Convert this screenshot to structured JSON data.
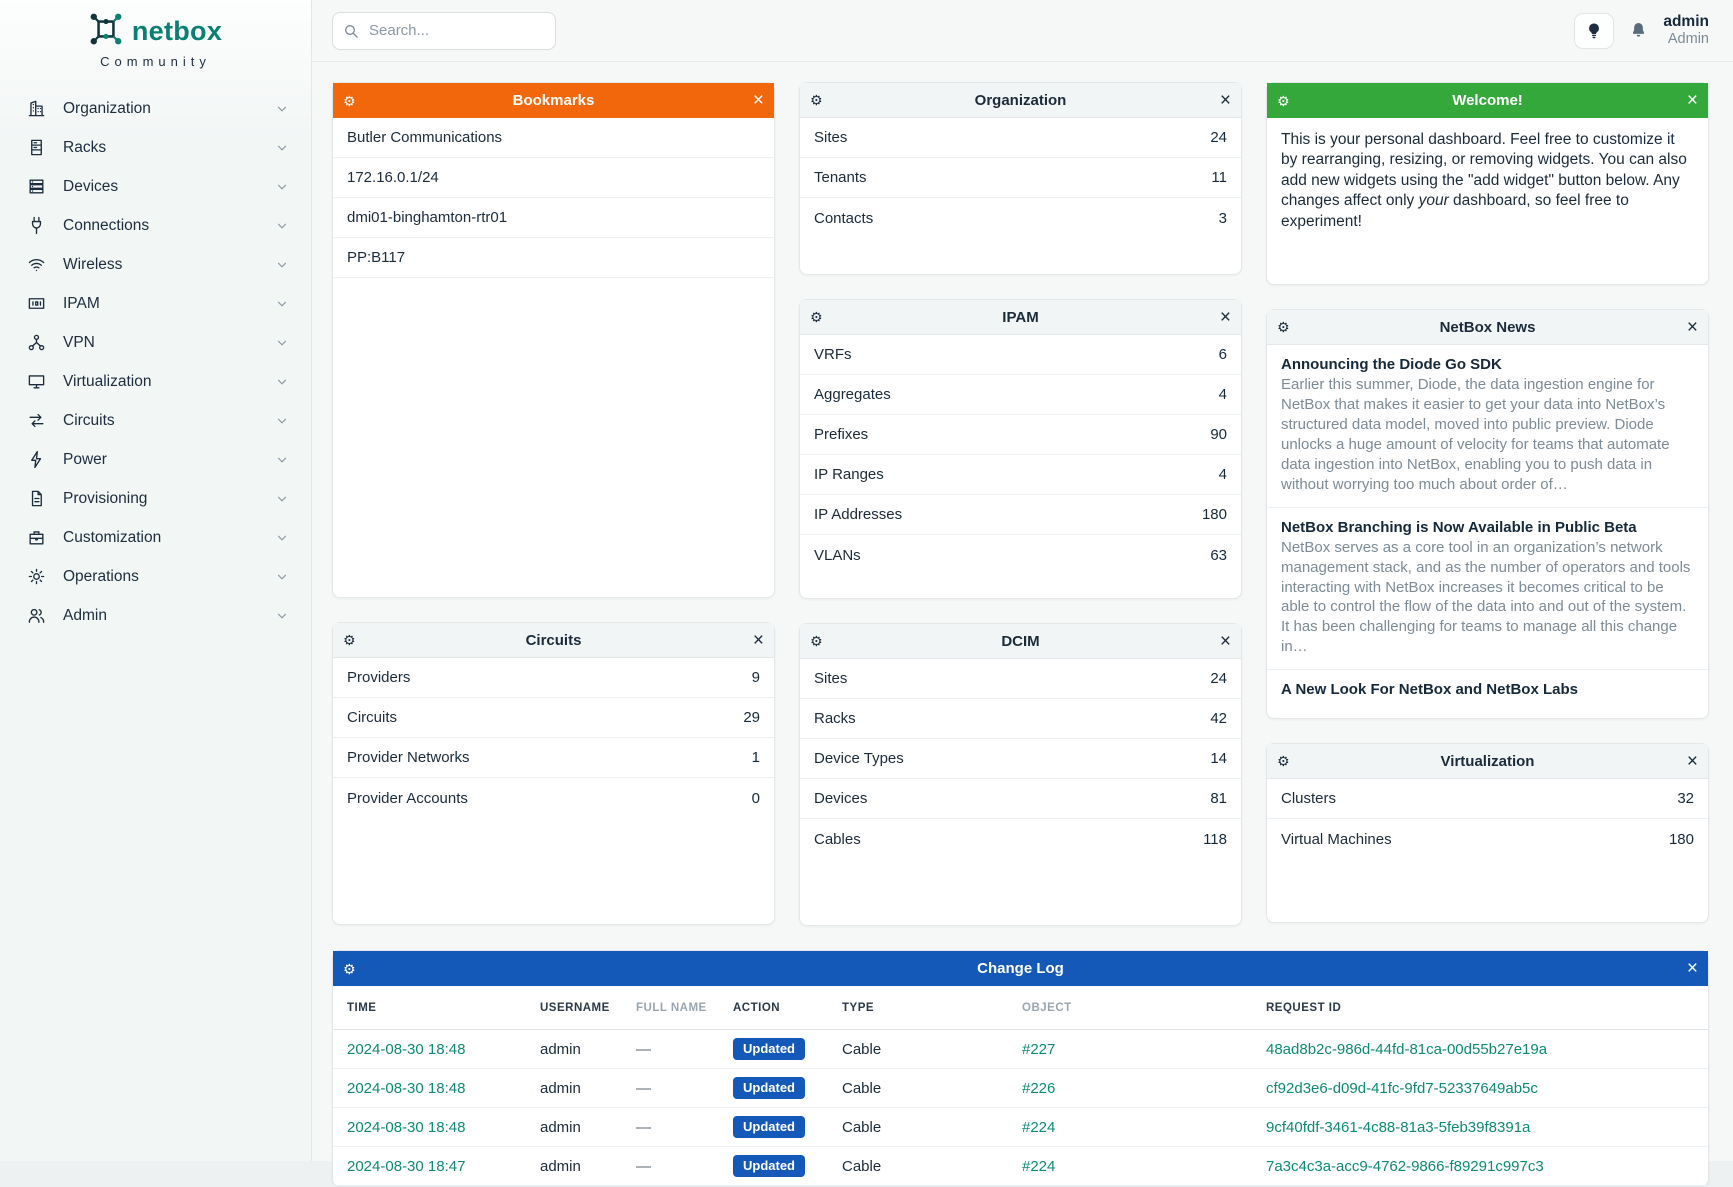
{
  "brand": {
    "name": "netbox",
    "subtitle": "Community"
  },
  "topbar": {
    "search_placeholder": "Search...",
    "user_name": "admin",
    "user_role": "Admin"
  },
  "sidebar": {
    "items": [
      {
        "label": "Organization",
        "icon": "organization-icon"
      },
      {
        "label": "Racks",
        "icon": "racks-icon"
      },
      {
        "label": "Devices",
        "icon": "devices-icon"
      },
      {
        "label": "Connections",
        "icon": "connections-icon"
      },
      {
        "label": "Wireless",
        "icon": "wireless-icon"
      },
      {
        "label": "IPAM",
        "icon": "ipam-icon"
      },
      {
        "label": "VPN",
        "icon": "vpn-icon"
      },
      {
        "label": "Virtualization",
        "icon": "virtualization-icon"
      },
      {
        "label": "Circuits",
        "icon": "circuits-icon"
      },
      {
        "label": "Power",
        "icon": "power-icon"
      },
      {
        "label": "Provisioning",
        "icon": "provisioning-icon"
      },
      {
        "label": "Customization",
        "icon": "customization-icon"
      },
      {
        "label": "Operations",
        "icon": "operations-icon"
      },
      {
        "label": "Admin",
        "icon": "admin-icon"
      }
    ]
  },
  "widgets": {
    "bookmarks": {
      "title": "Bookmarks",
      "accent": "#f2670c",
      "items": [
        "Butler Communications",
        "172.16.0.1/24",
        "dmi01-binghamton-rtr01",
        "PP:B117"
      ]
    },
    "organization": {
      "title": "Organization",
      "rows": [
        {
          "label": "Sites",
          "value": "24"
        },
        {
          "label": "Tenants",
          "value": "11"
        },
        {
          "label": "Contacts",
          "value": "3"
        }
      ]
    },
    "welcome": {
      "title": "Welcome!",
      "accent": "#35a83c",
      "text_pre": "This is your personal dashboard. Feel free to customize it by rearranging, resizing, or removing widgets. You can also add new widgets using the \"add widget\" button below. Any changes affect only ",
      "text_italic": "your",
      "text_post": " dashboard, so feel free to experiment!"
    },
    "ipam": {
      "title": "IPAM",
      "rows": [
        {
          "label": "VRFs",
          "value": "6"
        },
        {
          "label": "Aggregates",
          "value": "4"
        },
        {
          "label": "Prefixes",
          "value": "90"
        },
        {
          "label": "IP Ranges",
          "value": "4"
        },
        {
          "label": "IP Addresses",
          "value": "180"
        },
        {
          "label": "VLANs",
          "value": "63"
        }
      ]
    },
    "news": {
      "title": "NetBox News",
      "articles": [
        {
          "title": "Announcing the Diode Go SDK",
          "excerpt": "Earlier this summer, Diode, the data ingestion engine for NetBox that makes it easier to get your data into NetBox’s structured data model, moved into public preview. Diode unlocks a huge amount of velocity for teams that automate data ingestion into NetBox, enabling you to push data in without worrying too much about order of…"
        },
        {
          "title": "NetBox Branching is Now Available in Public Beta",
          "excerpt": "NetBox serves as a core tool in an organization’s network management stack, and as the number of operators and tools interacting with NetBox increases it becomes critical to be able to control the flow of the data into and out of the system. It has been challenging for teams to manage all this change in…"
        },
        {
          "title": "A New Look For NetBox and NetBox Labs",
          "excerpt": ""
        }
      ]
    },
    "circuits": {
      "title": "Circuits",
      "rows": [
        {
          "label": "Providers",
          "value": "9"
        },
        {
          "label": "Circuits",
          "value": "29"
        },
        {
          "label": "Provider Networks",
          "value": "1"
        },
        {
          "label": "Provider Accounts",
          "value": "0"
        }
      ]
    },
    "dcim": {
      "title": "DCIM",
      "rows": [
        {
          "label": "Sites",
          "value": "24"
        },
        {
          "label": "Racks",
          "value": "42"
        },
        {
          "label": "Device Types",
          "value": "14"
        },
        {
          "label": "Devices",
          "value": "81"
        },
        {
          "label": "Cables",
          "value": "118"
        }
      ]
    },
    "virtualization": {
      "title": "Virtualization",
      "rows": [
        {
          "label": "Clusters",
          "value": "32"
        },
        {
          "label": "Virtual Machines",
          "value": "180"
        }
      ]
    },
    "changelog": {
      "title": "Change Log",
      "accent": "#1459b8",
      "columns": [
        {
          "label": "Time",
          "muted": false
        },
        {
          "label": "Username",
          "muted": false
        },
        {
          "label": "Full Name",
          "muted": true
        },
        {
          "label": "Action",
          "muted": false
        },
        {
          "label": "Type",
          "muted": false
        },
        {
          "label": "Object",
          "muted": true
        },
        {
          "label": "Request ID",
          "muted": false
        }
      ],
      "rows": [
        {
          "time": "2024-08-30 18:48",
          "username": "admin",
          "full_name": "—",
          "action": "Updated",
          "type": "Cable",
          "object": "#227",
          "request_id": "48ad8b2c-986d-44fd-81ca-00d55b27e19a"
        },
        {
          "time": "2024-08-30 18:48",
          "username": "admin",
          "full_name": "—",
          "action": "Updated",
          "type": "Cable",
          "object": "#226",
          "request_id": "cf92d3e6-d09d-41fc-9fd7-52337649ab5c"
        },
        {
          "time": "2024-08-30 18:48",
          "username": "admin",
          "full_name": "—",
          "action": "Updated",
          "type": "Cable",
          "object": "#224",
          "request_id": "9cf40fdf-3461-4c88-81a3-5feb39f8391a"
        },
        {
          "time": "2024-08-30 18:47",
          "username": "admin",
          "full_name": "—",
          "action": "Updated",
          "type": "Cable",
          "object": "#224",
          "request_id": "7a3c4c3a-acc9-4762-9866-f89291c997c3"
        }
      ]
    }
  },
  "colors": {
    "accent_orange": "#f2670c",
    "accent_green": "#35a83c",
    "accent_blue": "#1459b8",
    "link_teal": "#0e8a74",
    "brand_teal": "#0c7f72",
    "text_dark": "#1b2b3a",
    "text_muted": "#7d8b97"
  }
}
